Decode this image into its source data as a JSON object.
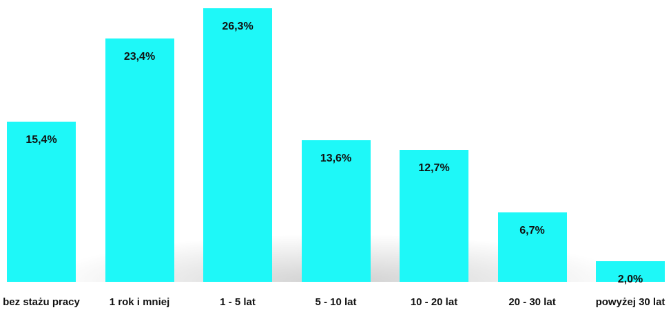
{
  "chart_data": {
    "type": "bar",
    "categories": [
      "bez stażu pracy",
      "1 rok i mniej",
      "1 - 5 lat",
      "5 - 10 lat",
      "10 - 20 lat",
      "20 - 30 lat",
      "powyżej 30 lat"
    ],
    "values": [
      15.4,
      23.4,
      26.3,
      13.6,
      12.7,
      6.7,
      2.0
    ],
    "value_labels": [
      "15,4%",
      "23,4%",
      "26,3%",
      "13,6%",
      "12,7%",
      "6,7%",
      "2,0%"
    ],
    "color": "#1ef8f8"
  }
}
